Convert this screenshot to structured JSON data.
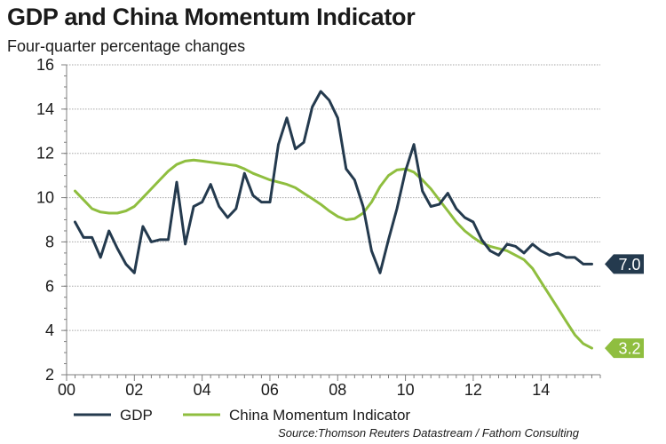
{
  "chart_data": {
    "type": "line",
    "title": "GDP and China Momentum Indicator",
    "subtitle": "Four-quarter percentage changes",
    "source": "Source:Thomson Reuters Datastream / Fathom Consulting",
    "x_tick_labels": [
      "00",
      "02",
      "04",
      "06",
      "08",
      "10",
      "12",
      "14"
    ],
    "y_tick_labels": [
      "2",
      "4",
      "6",
      "8",
      "10",
      "12",
      "14",
      "16"
    ],
    "xlim": [
      2000,
      2015.75
    ],
    "ylim": [
      2,
      16
    ],
    "grid": "horizontal",
    "legend_position": "bottom",
    "end_labels": [
      "7.0",
      "3.2"
    ],
    "series": [
      {
        "name": "GDP",
        "color": "#243a4e",
        "x": [
          2000.25,
          2000.5,
          2000.75,
          2001.0,
          2001.25,
          2001.5,
          2001.75,
          2002.0,
          2002.25,
          2002.5,
          2002.75,
          2003.0,
          2003.25,
          2003.5,
          2003.75,
          2004.0,
          2004.25,
          2004.5,
          2004.75,
          2005.0,
          2005.25,
          2005.5,
          2005.75,
          2006.0,
          2006.25,
          2006.5,
          2006.75,
          2007.0,
          2007.25,
          2007.5,
          2007.75,
          2008.0,
          2008.25,
          2008.5,
          2008.75,
          2009.0,
          2009.25,
          2009.5,
          2009.75,
          2010.0,
          2010.25,
          2010.5,
          2010.75,
          2011.0,
          2011.25,
          2011.5,
          2011.75,
          2012.0,
          2012.25,
          2012.5,
          2012.75,
          2013.0,
          2013.25,
          2013.5,
          2013.75,
          2014.0,
          2014.25,
          2014.5,
          2014.75,
          2015.0,
          2015.25,
          2015.5
        ],
        "values": [
          8.9,
          8.2,
          8.2,
          7.3,
          8.5,
          7.7,
          7.0,
          6.6,
          8.7,
          8.0,
          8.1,
          8.1,
          10.7,
          7.9,
          9.6,
          9.8,
          10.6,
          9.6,
          9.1,
          9.5,
          11.1,
          10.1,
          9.8,
          9.8,
          12.4,
          13.6,
          12.2,
          12.5,
          14.1,
          14.8,
          14.4,
          13.6,
          11.3,
          10.8,
          9.6,
          7.6,
          6.6,
          8.1,
          9.5,
          11.2,
          12.4,
          10.3,
          9.6,
          9.7,
          10.2,
          9.5,
          9.1,
          8.9,
          8.1,
          7.6,
          7.4,
          7.9,
          7.8,
          7.5,
          7.9,
          7.6,
          7.4,
          7.5,
          7.3,
          7.3,
          7.0,
          7.0
        ]
      },
      {
        "name": "China Momentum Indicator",
        "color": "#8fbe3f",
        "x": [
          2000.25,
          2000.5,
          2000.75,
          2001.0,
          2001.25,
          2001.5,
          2001.75,
          2002.0,
          2002.25,
          2002.5,
          2002.75,
          2003.0,
          2003.25,
          2003.5,
          2003.75,
          2004.0,
          2004.25,
          2004.5,
          2004.75,
          2005.0,
          2005.25,
          2005.5,
          2005.75,
          2006.0,
          2006.25,
          2006.5,
          2006.75,
          2007.0,
          2007.25,
          2007.5,
          2007.75,
          2008.0,
          2008.25,
          2008.5,
          2008.75,
          2009.0,
          2009.25,
          2009.5,
          2009.75,
          2010.0,
          2010.25,
          2010.5,
          2010.75,
          2011.0,
          2011.25,
          2011.5,
          2011.75,
          2012.0,
          2012.25,
          2012.5,
          2012.75,
          2013.0,
          2013.25,
          2013.5,
          2013.75,
          2014.0,
          2014.25,
          2014.5,
          2014.75,
          2015.0,
          2015.25,
          2015.5
        ],
        "values": [
          10.3,
          9.9,
          9.5,
          9.35,
          9.3,
          9.3,
          9.4,
          9.6,
          10.0,
          10.4,
          10.8,
          11.2,
          11.5,
          11.65,
          11.7,
          11.65,
          11.6,
          11.55,
          11.5,
          11.45,
          11.3,
          11.1,
          10.95,
          10.8,
          10.7,
          10.6,
          10.45,
          10.2,
          9.95,
          9.7,
          9.4,
          9.15,
          9.0,
          9.05,
          9.3,
          9.8,
          10.5,
          11.0,
          11.25,
          11.3,
          11.15,
          10.8,
          10.4,
          9.9,
          9.4,
          8.9,
          8.5,
          8.2,
          7.95,
          7.8,
          7.7,
          7.6,
          7.4,
          7.2,
          6.8,
          6.2,
          5.6,
          5.0,
          4.4,
          3.8,
          3.4,
          3.2
        ]
      }
    ]
  }
}
